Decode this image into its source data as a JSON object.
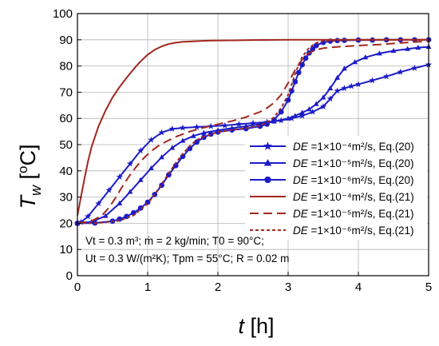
{
  "chart_data": {
    "type": "line",
    "xlabel": {
      "symbol": "t",
      "unit": "[h]"
    },
    "ylabel": {
      "symbol": "T",
      "subscript": "w",
      "unit_open": "[",
      "unit_sup": "o",
      "unit_main": "C]"
    },
    "xlim": [
      0,
      5
    ],
    "ylim": [
      0,
      100
    ],
    "x_ticks": [
      "0",
      "1",
      "2",
      "3",
      "4",
      "5"
    ],
    "y_ticks": [
      "0",
      "10",
      "20",
      "30",
      "40",
      "50",
      "60",
      "70",
      "80",
      "90",
      "100"
    ],
    "grid": true,
    "legend_position": "right",
    "colors": {
      "blue": "#1c1cc8",
      "red": "#a0281e"
    },
    "series": [
      {
        "name": "DE =1×10⁻⁴m²/s, Eq.(20)",
        "color": "#1c1cc8",
        "style": "solid",
        "marker": "star",
        "x": [
          0.0,
          0.05,
          0.15,
          0.3,
          0.45,
          0.6,
          0.75,
          0.9,
          1.05,
          1.2,
          1.35,
          1.5,
          1.7,
          1.9,
          2.1,
          2.3,
          2.5,
          2.7,
          2.9,
          3.05,
          3.2,
          3.35,
          3.5,
          3.6,
          3.7,
          3.8,
          3.9,
          4.0,
          4.2,
          4.4,
          4.6,
          4.8,
          5.0
        ],
        "y": [
          20.0,
          20.4,
          22.6,
          27.5,
          32.6,
          37.7,
          42.7,
          47.7,
          51.8,
          54.6,
          56.0,
          56.4,
          56.7,
          57.0,
          57.3,
          57.8,
          58.2,
          58.6,
          59.2,
          60.0,
          61.0,
          62.5,
          64.5,
          67.5,
          70.5,
          71.5,
          72.3,
          73.0,
          74.5,
          76.0,
          77.7,
          79.2,
          80.5
        ]
      },
      {
        "name": "DE =1×10⁻⁵m²/s, Eq.(20)",
        "color": "#1c1cc8",
        "style": "solid",
        "marker": "triangle",
        "x": [
          0.0,
          0.2,
          0.4,
          0.6,
          0.75,
          0.9,
          1.05,
          1.2,
          1.35,
          1.5,
          1.65,
          1.8,
          2.0,
          2.2,
          2.4,
          2.6,
          2.8,
          3.0,
          3.1,
          3.2,
          3.3,
          3.4,
          3.5,
          3.6,
          3.7,
          3.8,
          3.95,
          4.1,
          4.3,
          4.5,
          4.7,
          4.85,
          5.0
        ],
        "y": [
          20.0,
          20.5,
          22.8,
          27.6,
          32.0,
          36.5,
          41.0,
          45.2,
          48.8,
          51.5,
          53.3,
          54.5,
          55.5,
          56.3,
          57.0,
          57.8,
          58.8,
          60.0,
          61.0,
          62.2,
          63.5,
          65.5,
          68.0,
          71.5,
          75.5,
          79.0,
          81.5,
          83.3,
          84.8,
          85.8,
          86.5,
          87.0,
          87.3
        ]
      },
      {
        "name": "DE =1×10⁻⁶m²/s, Eq.(20)",
        "color": "#1c1cc8",
        "style": "solid",
        "marker": "circle",
        "x": [
          0.0,
          0.25,
          0.5,
          0.6,
          0.7,
          0.8,
          0.9,
          1.0,
          1.1,
          1.2,
          1.3,
          1.4,
          1.5,
          1.6,
          1.7,
          1.8,
          1.9,
          2.0,
          2.2,
          2.4,
          2.6,
          2.7,
          2.8,
          2.9,
          3.0,
          3.05,
          3.1,
          3.15,
          3.2,
          3.25,
          3.3,
          3.35,
          3.4,
          3.5,
          3.6,
          3.7,
          3.8,
          4.0,
          4.2,
          4.4,
          4.6,
          4.8,
          5.0
        ],
        "y": [
          20.0,
          20.1,
          20.8,
          21.6,
          22.6,
          24.0,
          25.8,
          28.0,
          31.0,
          34.5,
          38.5,
          42.0,
          45.5,
          48.5,
          51.0,
          52.8,
          54.0,
          54.8,
          55.6,
          56.1,
          57.0,
          57.8,
          59.5,
          62.5,
          67.0,
          70.5,
          74.0,
          77.5,
          80.5,
          83.0,
          85.0,
          86.5,
          87.8,
          89.0,
          89.5,
          89.7,
          89.8,
          89.9,
          89.9,
          90.0,
          90.0,
          90.0,
          90.0
        ]
      },
      {
        "name": "DE =1×10⁻⁴m²/s, Eq.(21)",
        "color": "#a0281e",
        "style": "solid",
        "marker": "none",
        "x": [
          0.0,
          0.05,
          0.1,
          0.15,
          0.2,
          0.3,
          0.4,
          0.5,
          0.6,
          0.7,
          0.8,
          0.9,
          1.0,
          1.1,
          1.2,
          1.3,
          1.4,
          1.5,
          1.7,
          1.9,
          2.2,
          2.5,
          3.0,
          3.5,
          4.0,
          4.5,
          5.0
        ],
        "y": [
          23.0,
          30.0,
          37.0,
          43.5,
          49.0,
          57.0,
          63.0,
          68.0,
          72.0,
          75.5,
          78.8,
          81.8,
          84.3,
          86.2,
          87.5,
          88.4,
          88.9,
          89.2,
          89.5,
          89.7,
          89.8,
          89.9,
          90.0,
          90.0,
          90.0,
          90.0,
          90.0
        ]
      },
      {
        "name": "DE =1×10⁻⁵m²/s, Eq.(21)",
        "color": "#a0281e",
        "style": "dashed",
        "marker": "none",
        "x": [
          0.0,
          0.2,
          0.35,
          0.45,
          0.55,
          0.65,
          0.75,
          0.85,
          0.95,
          1.05,
          1.15,
          1.25,
          1.4,
          1.6,
          1.8,
          2.0,
          2.2,
          2.4,
          2.6,
          2.7,
          2.8,
          2.9,
          3.0,
          3.1,
          3.2,
          3.3,
          3.4,
          3.5,
          3.7,
          4.0,
          4.3,
          4.6,
          5.0
        ],
        "y": [
          20.0,
          20.8,
          23.0,
          26.0,
          30.0,
          34.5,
          38.5,
          42.0,
          45.0,
          47.5,
          49.5,
          51.0,
          53.0,
          55.0,
          56.5,
          57.8,
          59.0,
          60.5,
          62.5,
          64.0,
          66.0,
          69.0,
          73.5,
          78.5,
          82.5,
          85.0,
          86.2,
          86.8,
          87.3,
          87.8,
          88.2,
          88.8,
          89.5
        ]
      },
      {
        "name": "DE =1×10⁻⁶m²/s, Eq.(21)",
        "color": "#a0281e",
        "style": "dotted",
        "marker": "none",
        "x": [
          0.0,
          0.3,
          0.6,
          0.8,
          1.0,
          1.1,
          1.2,
          1.3,
          1.4,
          1.5,
          1.6,
          1.7,
          1.8,
          2.0,
          2.2,
          2.4,
          2.6,
          2.7,
          2.8,
          2.9,
          3.0,
          3.05,
          3.1,
          3.15,
          3.2,
          3.3,
          3.4,
          3.5,
          3.7,
          4.0,
          4.5,
          5.0
        ],
        "y": [
          20.0,
          20.1,
          21.0,
          23.0,
          27.5,
          31.0,
          35.0,
          39.0,
          43.0,
          46.5,
          49.5,
          51.8,
          53.0,
          54.8,
          55.6,
          56.3,
          57.3,
          58.5,
          60.5,
          64.0,
          69.0,
          73.0,
          77.0,
          80.5,
          83.5,
          87.0,
          88.8,
          89.5,
          89.8,
          90.0,
          90.0,
          90.0
        ]
      }
    ],
    "legend_entries": [
      {
        "label": "DE",
        "text": " =1×10⁻⁴m²/s, Eq.(20)"
      },
      {
        "label": "DE",
        "text": " =1×10⁻⁵m²/s, Eq.(20)"
      },
      {
        "label": "DE",
        "text": " =1×10⁻⁶m²/s, Eq.(20)"
      },
      {
        "label": "DE",
        "text": " =1×10⁻⁴m²/s, Eq.(21)"
      },
      {
        "label": "DE",
        "text": " =1×10⁻⁵m²/s, Eq.(21)"
      },
      {
        "label": "DE",
        "text": " =1×10⁻⁶m²/s, Eq.(21)"
      }
    ],
    "annotations": [
      "Vt = 0.3 m³; ṁ = 2 kg/min; T0 = 90°C;",
      "Ut = 0.3 W/(m²K); Tpm = 55°C; R = 0.02 m"
    ]
  }
}
